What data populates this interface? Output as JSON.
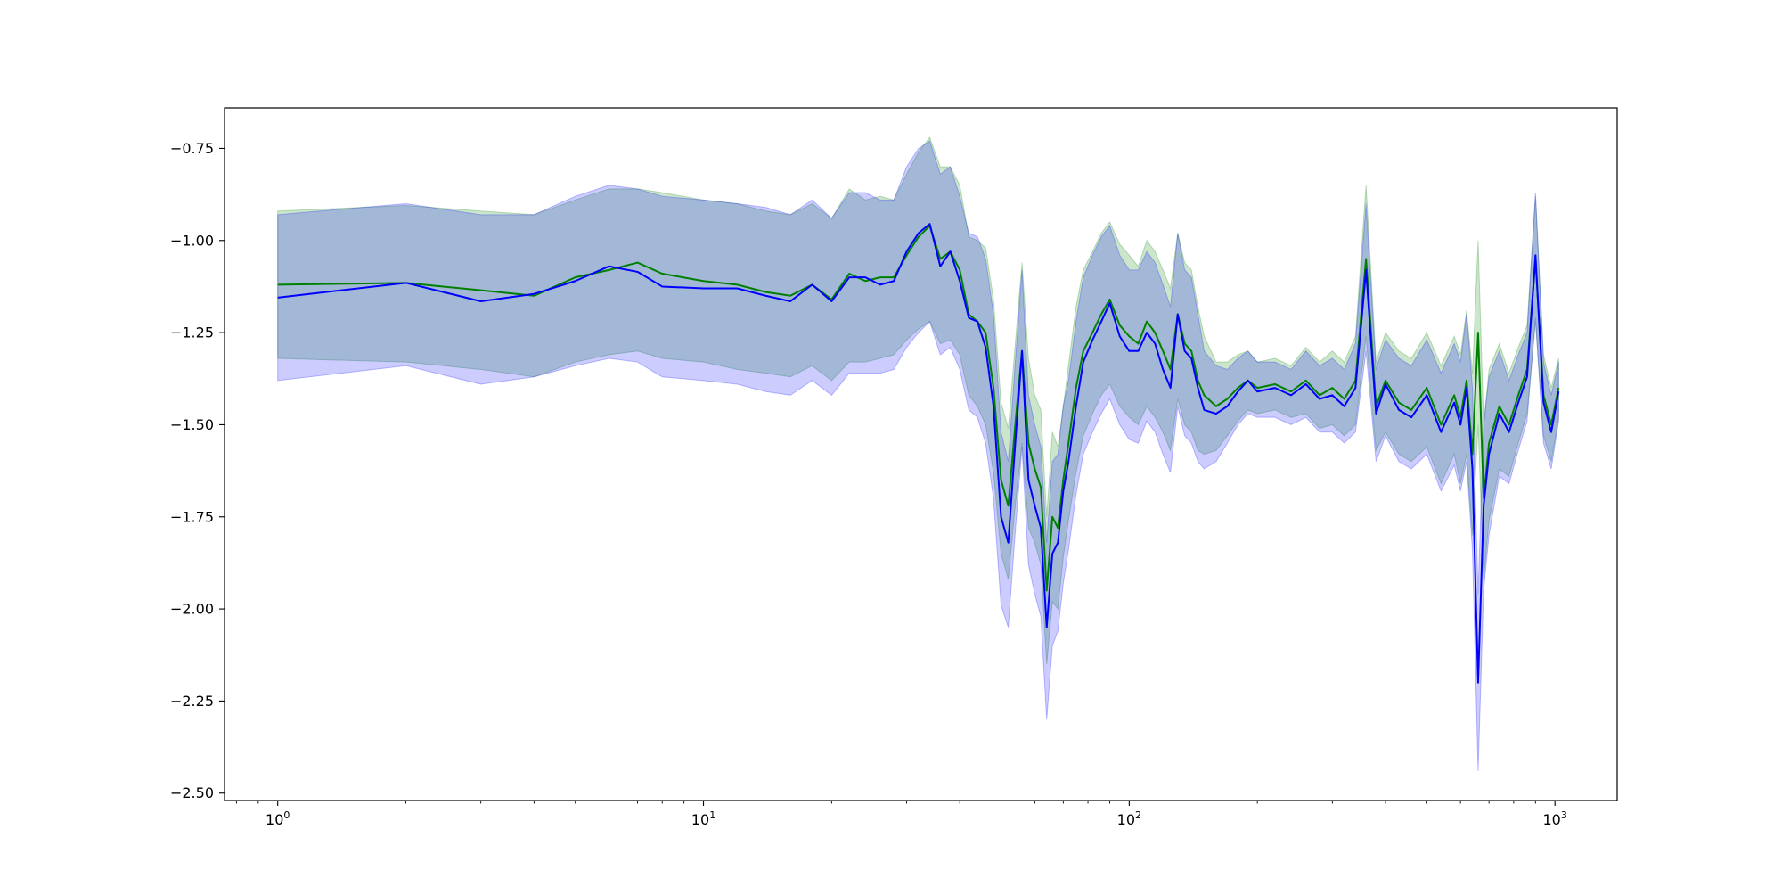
{
  "chart_data": {
    "type": "line",
    "title": "",
    "xlabel": "",
    "ylabel": "",
    "xscale": "log",
    "xlim": [
      0.75,
      1400
    ],
    "ylim": [
      -2.52,
      -0.64
    ],
    "grid": false,
    "x_ticks": [
      {
        "value": 1,
        "base": "10",
        "exp": "0"
      },
      {
        "value": 10,
        "base": "10",
        "exp": "1"
      },
      {
        "value": 100,
        "base": "10",
        "exp": "2"
      },
      {
        "value": 1000,
        "base": "10",
        "exp": "3"
      }
    ],
    "y_ticks": [
      {
        "value": -0.75,
        "label": "−0.75"
      },
      {
        "value": -1.0,
        "label": "−1.00"
      },
      {
        "value": -1.25,
        "label": "−1.25"
      },
      {
        "value": -1.5,
        "label": "−1.50"
      },
      {
        "value": -1.75,
        "label": "−1.75"
      },
      {
        "value": -2.0,
        "label": "−2.00"
      },
      {
        "value": -2.25,
        "label": "−2.25"
      },
      {
        "value": -2.5,
        "label": "−2.50"
      }
    ],
    "x": [
      1,
      2,
      3,
      4,
      5,
      6,
      7,
      8,
      10,
      12,
      14,
      16,
      18,
      20,
      22,
      24,
      26,
      28,
      30,
      32,
      34,
      36,
      38,
      40,
      42,
      44,
      46,
      48,
      50,
      52,
      54,
      56,
      58,
      60,
      62,
      64,
      66,
      68,
      70,
      72,
      75,
      78,
      82,
      86,
      90,
      95,
      100,
      105,
      110,
      115,
      120,
      125,
      130,
      135,
      140,
      145,
      150,
      160,
      170,
      180,
      190,
      200,
      220,
      240,
      260,
      280,
      300,
      320,
      340,
      360,
      380,
      400,
      430,
      460,
      500,
      540,
      580,
      600,
      620,
      640,
      660,
      680,
      700,
      740,
      780,
      820,
      860,
      900,
      940,
      980,
      1020
    ],
    "series": [
      {
        "color": "#008000",
        "band_color": "#008000",
        "values": [
          -1.12,
          -1.115,
          -1.135,
          -1.15,
          -1.1,
          -1.08,
          -1.06,
          -1.09,
          -1.11,
          -1.12,
          -1.14,
          -1.15,
          -1.12,
          -1.16,
          -1.09,
          -1.11,
          -1.1,
          -1.1,
          -1.04,
          -0.99,
          -0.96,
          -1.05,
          -1.03,
          -1.08,
          -1.2,
          -1.22,
          -1.25,
          -1.4,
          -1.65,
          -1.72,
          -1.5,
          -1.3,
          -1.55,
          -1.62,
          -1.67,
          -1.95,
          -1.75,
          -1.78,
          -1.65,
          -1.55,
          -1.4,
          -1.3,
          -1.25,
          -1.2,
          -1.16,
          -1.23,
          -1.26,
          -1.28,
          -1.22,
          -1.25,
          -1.3,
          -1.35,
          -1.2,
          -1.28,
          -1.3,
          -1.38,
          -1.42,
          -1.45,
          -1.43,
          -1.4,
          -1.38,
          -1.4,
          -1.39,
          -1.41,
          -1.38,
          -1.42,
          -1.4,
          -1.43,
          -1.38,
          -1.05,
          -1.45,
          -1.38,
          -1.44,
          -1.46,
          -1.4,
          -1.5,
          -1.42,
          -1.48,
          -1.38,
          -1.58,
          -1.25,
          -1.7,
          -1.55,
          -1.45,
          -1.5,
          -1.42,
          -1.35,
          -1.05,
          -1.42,
          -1.5,
          -1.4
        ],
        "lower": [
          -1.32,
          -1.33,
          -1.35,
          -1.37,
          -1.33,
          -1.31,
          -1.3,
          -1.32,
          -1.33,
          -1.35,
          -1.36,
          -1.37,
          -1.34,
          -1.38,
          -1.33,
          -1.33,
          -1.32,
          -1.31,
          -1.27,
          -1.24,
          -1.22,
          -1.28,
          -1.27,
          -1.31,
          -1.42,
          -1.45,
          -1.5,
          -1.63,
          -1.85,
          -1.92,
          -1.72,
          -1.55,
          -1.78,
          -1.82,
          -1.88,
          -2.15,
          -1.98,
          -2.0,
          -1.86,
          -1.76,
          -1.63,
          -1.53,
          -1.47,
          -1.42,
          -1.39,
          -1.45,
          -1.48,
          -1.5,
          -1.45,
          -1.48,
          -1.52,
          -1.57,
          -1.43,
          -1.5,
          -1.52,
          -1.57,
          -1.58,
          -1.57,
          -1.53,
          -1.49,
          -1.46,
          -1.47,
          -1.46,
          -1.48,
          -1.47,
          -1.51,
          -1.5,
          -1.53,
          -1.5,
          -1.26,
          -1.57,
          -1.52,
          -1.58,
          -1.6,
          -1.56,
          -1.66,
          -1.58,
          -1.66,
          -1.58,
          -1.8,
          -1.5,
          -1.92,
          -1.76,
          -1.62,
          -1.64,
          -1.55,
          -1.47,
          -1.22,
          -1.53,
          -1.6,
          -1.48
        ],
        "upper": [
          -0.92,
          -0.905,
          -0.92,
          -0.93,
          -0.89,
          -0.86,
          -0.86,
          -0.87,
          -0.89,
          -0.9,
          -0.92,
          -0.93,
          -0.9,
          -0.94,
          -0.86,
          -0.89,
          -0.88,
          -0.89,
          -0.82,
          -0.76,
          -0.72,
          -0.8,
          -0.8,
          -0.85,
          -0.99,
          -1.0,
          -1.02,
          -1.16,
          -1.44,
          -1.51,
          -1.28,
          -1.06,
          -1.32,
          -1.42,
          -1.46,
          -1.75,
          -1.52,
          -1.56,
          -1.45,
          -1.34,
          -1.18,
          -1.08,
          -1.03,
          -0.98,
          -0.95,
          -1.01,
          -1.04,
          -1.07,
          -1.0,
          -1.03,
          -1.08,
          -1.13,
          -0.98,
          -1.06,
          -1.08,
          -1.18,
          -1.26,
          -1.33,
          -1.33,
          -1.31,
          -1.3,
          -1.33,
          -1.32,
          -1.34,
          -1.29,
          -1.33,
          -1.3,
          -1.33,
          -1.26,
          -0.85,
          -1.33,
          -1.25,
          -1.3,
          -1.32,
          -1.25,
          -1.34,
          -1.26,
          -1.31,
          -1.19,
          -1.36,
          -1.0,
          -1.5,
          -1.35,
          -1.28,
          -1.36,
          -1.29,
          -1.23,
          -0.88,
          -1.31,
          -1.4,
          -1.32
        ]
      },
      {
        "color": "#0000ff",
        "band_color": "#0000ff",
        "values": [
          -1.155,
          -1.115,
          -1.165,
          -1.145,
          -1.11,
          -1.07,
          -1.085,
          -1.125,
          -1.13,
          -1.13,
          -1.15,
          -1.165,
          -1.12,
          -1.165,
          -1.1,
          -1.1,
          -1.12,
          -1.11,
          -1.03,
          -0.98,
          -0.955,
          -1.07,
          -1.03,
          -1.11,
          -1.21,
          -1.22,
          -1.29,
          -1.45,
          -1.75,
          -1.82,
          -1.55,
          -1.3,
          -1.65,
          -1.72,
          -1.78,
          -2.05,
          -1.85,
          -1.82,
          -1.68,
          -1.6,
          -1.45,
          -1.33,
          -1.27,
          -1.22,
          -1.17,
          -1.26,
          -1.3,
          -1.3,
          -1.25,
          -1.28,
          -1.35,
          -1.4,
          -1.2,
          -1.3,
          -1.32,
          -1.4,
          -1.46,
          -1.47,
          -1.45,
          -1.41,
          -1.38,
          -1.41,
          -1.4,
          -1.42,
          -1.39,
          -1.43,
          -1.42,
          -1.45,
          -1.4,
          -1.08,
          -1.47,
          -1.39,
          -1.46,
          -1.48,
          -1.42,
          -1.52,
          -1.44,
          -1.5,
          -1.4,
          -1.62,
          -2.2,
          -1.72,
          -1.58,
          -1.47,
          -1.52,
          -1.44,
          -1.37,
          -1.04,
          -1.44,
          -1.52,
          -1.41
        ],
        "lower": [
          -1.38,
          -1.34,
          -1.39,
          -1.37,
          -1.34,
          -1.32,
          -1.33,
          -1.37,
          -1.38,
          -1.39,
          -1.41,
          -1.42,
          -1.38,
          -1.42,
          -1.36,
          -1.36,
          -1.36,
          -1.35,
          -1.29,
          -1.25,
          -1.22,
          -1.31,
          -1.29,
          -1.35,
          -1.46,
          -1.48,
          -1.55,
          -1.7,
          -1.99,
          -2.05,
          -1.79,
          -1.56,
          -1.88,
          -1.96,
          -2.02,
          -2.3,
          -2.1,
          -2.06,
          -1.93,
          -1.84,
          -1.69,
          -1.58,
          -1.52,
          -1.47,
          -1.43,
          -1.5,
          -1.54,
          -1.55,
          -1.49,
          -1.52,
          -1.58,
          -1.63,
          -1.45,
          -1.53,
          -1.55,
          -1.6,
          -1.62,
          -1.6,
          -1.55,
          -1.5,
          -1.47,
          -1.48,
          -1.48,
          -1.5,
          -1.48,
          -1.52,
          -1.52,
          -1.55,
          -1.52,
          -1.3,
          -1.6,
          -1.53,
          -1.6,
          -1.62,
          -1.58,
          -1.68,
          -1.61,
          -1.68,
          -1.6,
          -1.84,
          -2.44,
          -1.95,
          -1.8,
          -1.64,
          -1.66,
          -1.57,
          -1.49,
          -1.21,
          -1.55,
          -1.62,
          -1.49
        ],
        "upper": [
          -0.93,
          -0.9,
          -0.93,
          -0.93,
          -0.88,
          -0.85,
          -0.86,
          -0.88,
          -0.89,
          -0.9,
          -0.91,
          -0.93,
          -0.89,
          -0.94,
          -0.87,
          -0.87,
          -0.89,
          -0.89,
          -0.8,
          -0.75,
          -0.73,
          -0.82,
          -0.8,
          -0.88,
          -0.98,
          -0.99,
          -1.05,
          -1.2,
          -1.52,
          -1.6,
          -1.33,
          -1.08,
          -1.42,
          -1.5,
          -1.56,
          -1.82,
          -1.6,
          -1.58,
          -1.45,
          -1.38,
          -1.22,
          -1.1,
          -1.04,
          -0.99,
          -0.96,
          -1.04,
          -1.08,
          -1.08,
          -1.03,
          -1.06,
          -1.12,
          -1.18,
          -0.98,
          -1.08,
          -1.1,
          -1.2,
          -1.3,
          -1.34,
          -1.35,
          -1.32,
          -1.3,
          -1.33,
          -1.33,
          -1.35,
          -1.3,
          -1.34,
          -1.32,
          -1.35,
          -1.28,
          -0.9,
          -1.35,
          -1.27,
          -1.32,
          -1.34,
          -1.27,
          -1.36,
          -1.28,
          -1.33,
          -1.2,
          -1.4,
          -1.96,
          -1.5,
          -1.37,
          -1.3,
          -1.38,
          -1.31,
          -1.25,
          -0.87,
          -1.33,
          -1.42,
          -1.33
        ]
      }
    ]
  }
}
